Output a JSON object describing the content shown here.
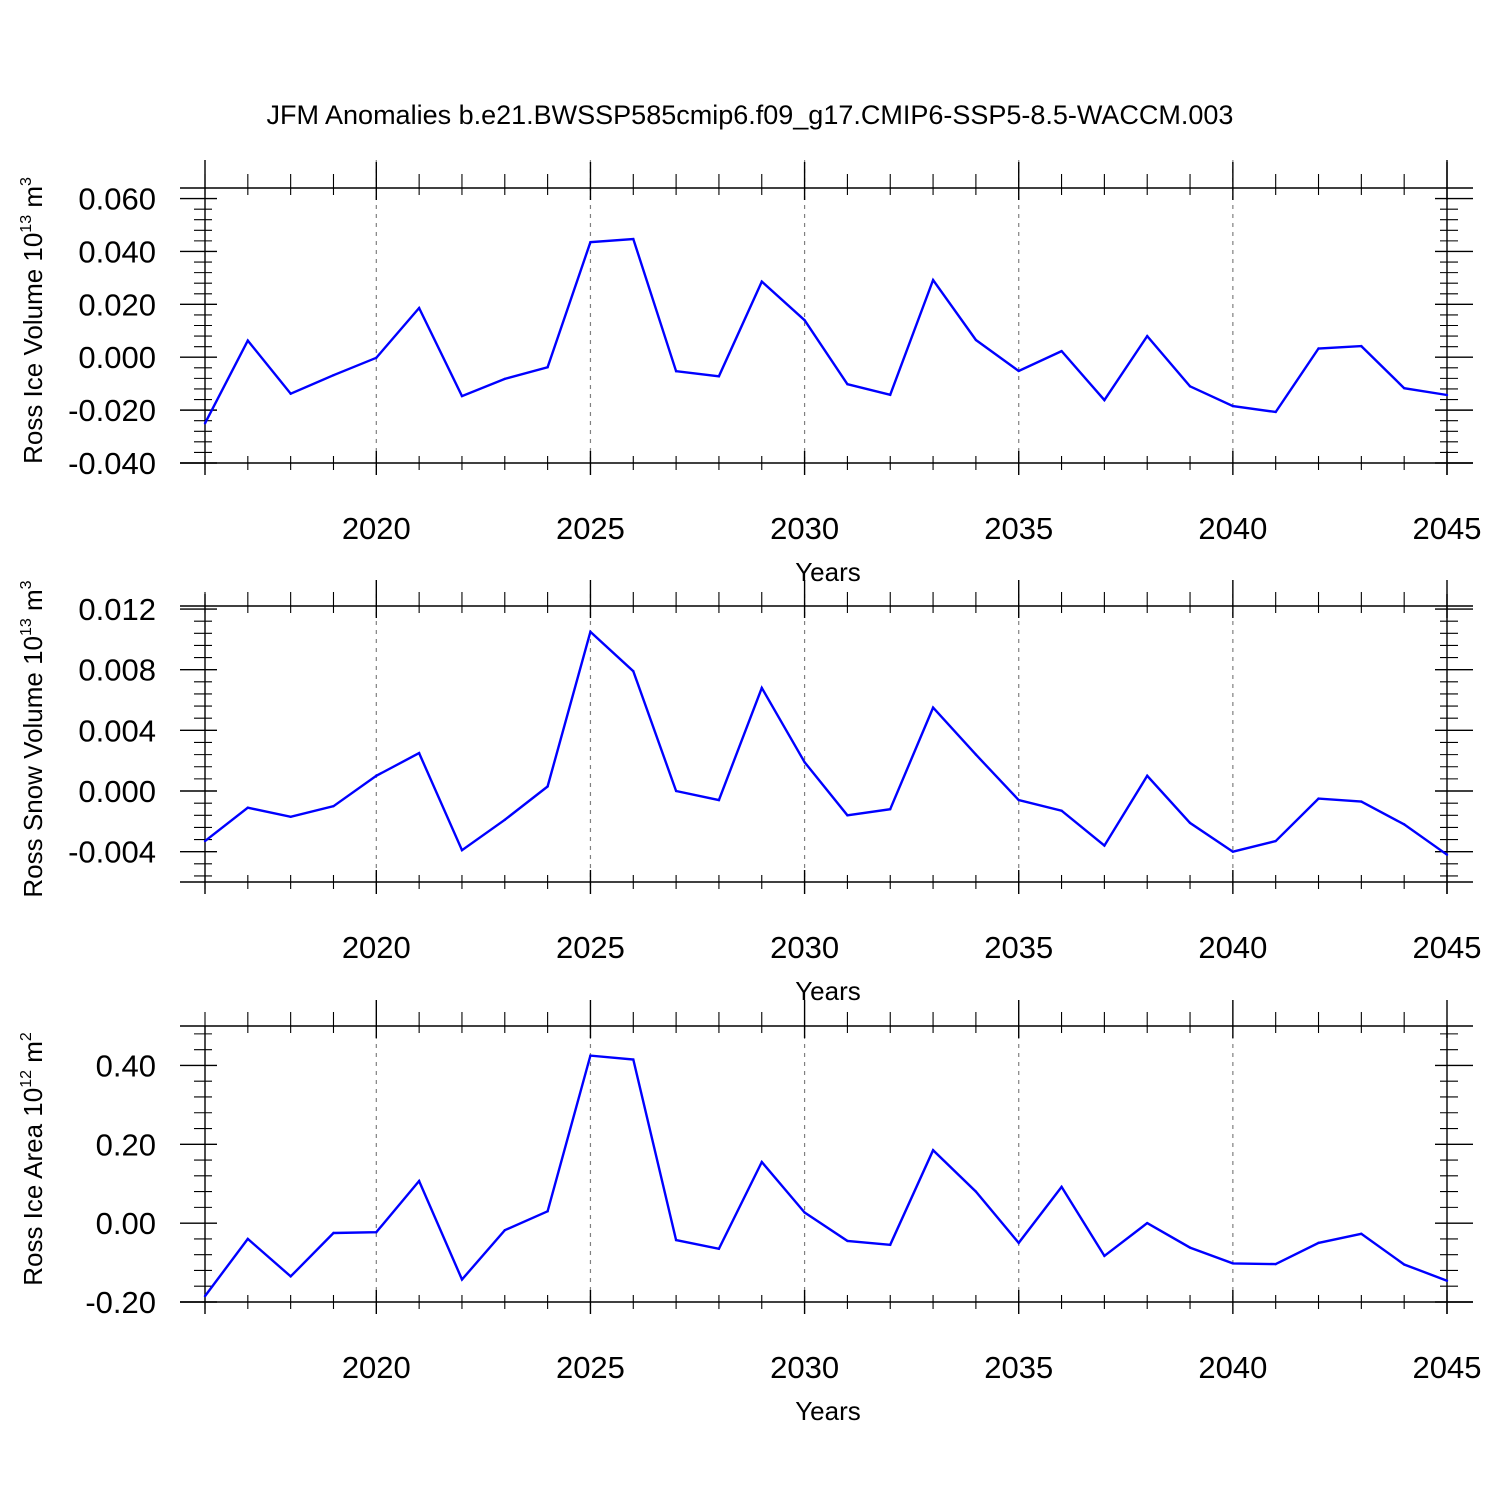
{
  "title": "JFM Anomalies b.e21.BWSSP585cmip6.f09_g17.CMIP6-SSP5-8.5-WACCM.003",
  "colors": {
    "line": "#0000ff",
    "axis": "#000000",
    "grid": "#808080"
  },
  "chart_data": [
    {
      "type": "line",
      "ylabel": {
        "prefix": "Ross Ice Volume 10",
        "exponent": "13",
        "unit_base": " m",
        "unit_exponent": "3"
      },
      "xlabel": "Years",
      "xlim": [
        2016,
        2045
      ],
      "ylim": [
        -0.04,
        0.064
      ],
      "yticks": [
        -0.04,
        -0.02,
        0.0,
        0.02,
        0.04,
        0.06
      ],
      "ytick_labels": [
        "-0.040",
        "-0.020",
        "0.000",
        "0.020",
        "0.040",
        "0.060"
      ],
      "xticks": [
        2020,
        2025,
        2030,
        2035,
        2040,
        2045
      ],
      "xtick_labels": [
        "2020",
        "2025",
        "2030",
        "2035",
        "2040",
        "2045"
      ],
      "grid": "dashed vertical",
      "x": [
        2016,
        2017,
        2018,
        2019,
        2020,
        2021,
        2022,
        2023,
        2024,
        2025,
        2026,
        2027,
        2028,
        2029,
        2030,
        2031,
        2032,
        2033,
        2034,
        2035,
        2036,
        2037,
        2038,
        2039,
        2040,
        2041,
        2042,
        2043,
        2044,
        2045
      ],
      "series": [
        {
          "name": "Ross Ice Volume",
          "values": [
            -0.025,
            0.0063,
            -0.0138,
            -0.0068,
            -0.0002,
            0.0186,
            -0.0147,
            -0.0082,
            -0.0038,
            0.0435,
            0.0447,
            -0.0053,
            -0.0072,
            0.0286,
            0.014,
            -0.0102,
            -0.0142,
            0.0292,
            0.0065,
            -0.0052,
            0.0023,
            -0.0162,
            0.008,
            -0.011,
            -0.0185,
            -0.0207,
            0.0033,
            0.0042,
            -0.0117,
            -0.0143
          ]
        }
      ]
    },
    {
      "type": "line",
      "ylabel": {
        "prefix": "Ross Snow Volume 10",
        "exponent": "13",
        "unit_base": " m",
        "unit_exponent": "3"
      },
      "xlabel": "Years",
      "xlim": [
        2016,
        2045
      ],
      "ylim": [
        -0.006,
        0.0122
      ],
      "yticks": [
        -0.004,
        0.0,
        0.004,
        0.008,
        0.012
      ],
      "ytick_labels": [
        "-0.004",
        "0.000",
        "0.004",
        "0.008",
        "0.012"
      ],
      "xticks": [
        2020,
        2025,
        2030,
        2035,
        2040,
        2045
      ],
      "xtick_labels": [
        "2020",
        "2025",
        "2030",
        "2035",
        "2040",
        "2045"
      ],
      "grid": "dashed vertical",
      "x": [
        2016,
        2017,
        2018,
        2019,
        2020,
        2021,
        2022,
        2023,
        2024,
        2025,
        2026,
        2027,
        2028,
        2029,
        2030,
        2031,
        2032,
        2033,
        2034,
        2035,
        2036,
        2037,
        2038,
        2039,
        2040,
        2041,
        2042,
        2043,
        2044,
        2045
      ],
      "series": [
        {
          "name": "Ross Snow Volume",
          "values": [
            -0.0033,
            -0.0011,
            -0.0017,
            -0.001,
            0.001,
            0.0025,
            -0.0039,
            -0.0019,
            0.0003,
            0.0105,
            0.0079,
            0.0,
            -0.0006,
            0.0068,
            0.0019,
            -0.0016,
            -0.0012,
            0.0055,
            0.0024,
            -0.0006,
            -0.0013,
            -0.0036,
            0.001,
            -0.0021,
            -0.004,
            -0.0033,
            -0.0005,
            -0.0007,
            -0.0022,
            -0.0042
          ]
        }
      ]
    },
    {
      "type": "line",
      "ylabel": {
        "prefix": "Ross Ice Area 10",
        "exponent": "12",
        "unit_base": " m",
        "unit_exponent": "2"
      },
      "xlabel": "Years",
      "xlim": [
        2016,
        2045
      ],
      "ylim": [
        -0.2,
        0.5
      ],
      "yticks": [
        -0.2,
        0.0,
        0.2,
        0.4
      ],
      "ytick_labels": [
        "-0.20",
        "0.00",
        "0.20",
        "0.40"
      ],
      "xticks": [
        2020,
        2025,
        2030,
        2035,
        2040,
        2045
      ],
      "xtick_labels": [
        "2020",
        "2025",
        "2030",
        "2035",
        "2040",
        "2045"
      ],
      "grid": "dashed vertical",
      "x": [
        2016,
        2017,
        2018,
        2019,
        2020,
        2021,
        2022,
        2023,
        2024,
        2025,
        2026,
        2027,
        2028,
        2029,
        2030,
        2031,
        2032,
        2033,
        2034,
        2035,
        2036,
        2037,
        2038,
        2039,
        2040,
        2041,
        2042,
        2043,
        2044,
        2045
      ],
      "series": [
        {
          "name": "Ross Ice Area",
          "values": [
            -0.185,
            -0.04,
            -0.135,
            -0.025,
            -0.023,
            0.107,
            -0.143,
            -0.018,
            0.03,
            0.425,
            0.415,
            -0.043,
            -0.065,
            0.155,
            0.027,
            -0.045,
            -0.055,
            0.185,
            0.08,
            -0.05,
            0.092,
            -0.083,
            0.0,
            -0.062,
            -0.102,
            -0.104,
            -0.05,
            -0.027,
            -0.105,
            -0.146
          ]
        }
      ]
    }
  ]
}
